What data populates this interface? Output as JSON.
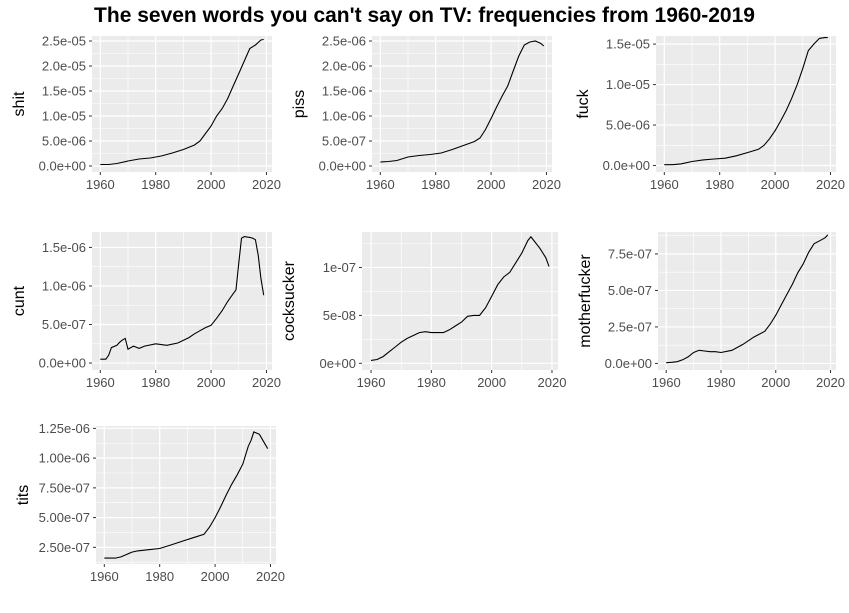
{
  "title": "The seven words you can't say on TV: frequencies from 1960-2019",
  "chart_data": [
    {
      "type": "line",
      "ylabel": "shit",
      "xlim": [
        1957,
        2022
      ],
      "ylim": [
        -1.2e-06,
        2.6e-05
      ],
      "xticks": [
        {
          "v": 1960,
          "label": "1960"
        },
        {
          "v": 1980,
          "label": "1980"
        },
        {
          "v": 2000,
          "label": "2000"
        },
        {
          "v": 2020,
          "label": "2020"
        }
      ],
      "yticks": [
        {
          "v": 0,
          "label": "0.0e+00"
        },
        {
          "v": 5e-06,
          "label": "5.0e-06"
        },
        {
          "v": 1e-05,
          "label": "1.0e-05"
        },
        {
          "v": 1.5e-05,
          "label": "1.5e-05"
        },
        {
          "v": 2e-05,
          "label": "2.0e-05"
        },
        {
          "v": 2.5e-05,
          "label": "2.5e-05"
        }
      ],
      "x": [
        1960,
        1963,
        1966,
        1970,
        1974,
        1978,
        1982,
        1986,
        1990,
        1994,
        1996,
        1998,
        2000,
        2002,
        2004,
        2006,
        2008,
        2010,
        2012,
        2014,
        2016,
        2018,
        2019
      ],
      "y": [
        3e-07,
        3e-07,
        5e-07,
        1e-06,
        1.4e-06,
        1.6e-06,
        2e-06,
        2.6e-06,
        3.3e-06,
        4.2e-06,
        5e-06,
        6.5e-06,
        8e-06,
        1e-05,
        1.15e-05,
        1.35e-05,
        1.6e-05,
        1.85e-05,
        2.1e-05,
        2.35e-05,
        2.42e-05,
        2.52e-05,
        2.53e-05
      ]
    },
    {
      "type": "line",
      "ylabel": "piss",
      "xlim": [
        1957,
        2022
      ],
      "ylim": [
        -1.2e-07,
        2.6e-06
      ],
      "xticks": [
        {
          "v": 1960,
          "label": "1960"
        },
        {
          "v": 1980,
          "label": "1980"
        },
        {
          "v": 2000,
          "label": "2000"
        },
        {
          "v": 2020,
          "label": "2020"
        }
      ],
      "yticks": [
        {
          "v": 0,
          "label": "0.0e+00"
        },
        {
          "v": 5e-07,
          "label": "5.0e-07"
        },
        {
          "v": 1e-06,
          "label": "1.0e-06"
        },
        {
          "v": 1.5e-06,
          "label": "1.5e-06"
        },
        {
          "v": 2e-06,
          "label": "2.0e-06"
        },
        {
          "v": 2.5e-06,
          "label": "2.5e-06"
        }
      ],
      "x": [
        1960,
        1963,
        1966,
        1970,
        1974,
        1978,
        1982,
        1986,
        1990,
        1994,
        1996,
        1998,
        2000,
        2002,
        2004,
        2006,
        2008,
        2010,
        2012,
        2014,
        2016,
        2018,
        2019
      ],
      "y": [
        8e-08,
        9e-08,
        1.1e-07,
        1.8e-07,
        2.1e-07,
        2.3e-07,
        2.6e-07,
        3.3e-07,
        4.1e-07,
        4.9e-07,
        5.6e-07,
        7.3e-07,
        9.5e-07,
        1.18e-06,
        1.4e-06,
        1.6e-06,
        1.9e-06,
        2.2e-06,
        2.42e-06,
        2.48e-06,
        2.5e-06,
        2.45e-06,
        2.4e-06
      ]
    },
    {
      "type": "line",
      "ylabel": "fuck",
      "xlim": [
        1957,
        2022
      ],
      "ylim": [
        -8e-07,
        1.6e-05
      ],
      "xticks": [
        {
          "v": 1960,
          "label": "1960"
        },
        {
          "v": 1980,
          "label": "1980"
        },
        {
          "v": 2000,
          "label": "2000"
        },
        {
          "v": 2020,
          "label": "2020"
        }
      ],
      "yticks": [
        {
          "v": 0,
          "label": "0.0e+00"
        },
        {
          "v": 5e-06,
          "label": "5.0e-06"
        },
        {
          "v": 1e-05,
          "label": "1.0e-05"
        },
        {
          "v": 1.5e-05,
          "label": "1.5e-05"
        }
      ],
      "x": [
        1960,
        1963,
        1966,
        1970,
        1974,
        1978,
        1982,
        1986,
        1990,
        1994,
        1996,
        1998,
        2000,
        2002,
        2004,
        2006,
        2008,
        2010,
        2012,
        2014,
        2016,
        2018,
        2019
      ],
      "y": [
        1e-07,
        1e-07,
        2e-07,
        5e-07,
        7e-07,
        8e-07,
        9e-07,
        1.2e-06,
        1.6e-06,
        2e-06,
        2.5e-06,
        3.3e-06,
        4.3e-06,
        5.5e-06,
        6.8e-06,
        8.3e-06,
        1e-05,
        1.2e-05,
        1.42e-05,
        1.5e-05,
        1.57e-05,
        1.58e-05,
        1.58e-05
      ]
    },
    {
      "type": "line",
      "ylabel": "cunt",
      "xlim": [
        1957,
        2022
      ],
      "ylim": [
        -9e-08,
        1.7e-06
      ],
      "xticks": [
        {
          "v": 1960,
          "label": "1960"
        },
        {
          "v": 1980,
          "label": "1980"
        },
        {
          "v": 2000,
          "label": "2000"
        },
        {
          "v": 2020,
          "label": "2020"
        }
      ],
      "yticks": [
        {
          "v": 0,
          "label": "0.0e+00"
        },
        {
          "v": 5e-07,
          "label": "5.0e-07"
        },
        {
          "v": 1e-06,
          "label": "1.0e-06"
        },
        {
          "v": 1.5e-06,
          "label": "1.5e-06"
        }
      ],
      "x": [
        1960,
        1962,
        1963,
        1964,
        1966,
        1967,
        1968,
        1969,
        1970,
        1972,
        1974,
        1976,
        1980,
        1984,
        1988,
        1992,
        1994,
        1996,
        1998,
        2000,
        2002,
        2004,
        2006,
        2008,
        2009,
        2010,
        2011,
        2012,
        2014,
        2015,
        2016,
        2017,
        2018,
        2019
      ],
      "y": [
        5e-08,
        5e-08,
        1e-07,
        2e-07,
        2.3e-07,
        2.7e-07,
        3e-07,
        3.2e-07,
        1.8e-07,
        2.2e-07,
        1.9e-07,
        2.2e-07,
        2.5e-07,
        2.3e-07,
        2.6e-07,
        3.3e-07,
        3.8e-07,
        4.2e-07,
        4.6e-07,
        4.9e-07,
        5.8e-07,
        6.8e-07,
        8e-07,
        9e-07,
        9.5e-07,
        1.3e-06,
        1.62e-06,
        1.64e-06,
        1.63e-06,
        1.62e-06,
        1.6e-06,
        1.4e-06,
        1.1e-06,
        8.8e-07
      ]
    },
    {
      "type": "line",
      "ylabel": "cocksucker",
      "xlim": [
        1957,
        2022
      ],
      "ylim": [
        -7e-09,
        1.37e-07
      ],
      "xticks": [
        {
          "v": 1960,
          "label": "1960"
        },
        {
          "v": 1980,
          "label": "1980"
        },
        {
          "v": 2000,
          "label": "2000"
        },
        {
          "v": 2020,
          "label": "2020"
        }
      ],
      "yticks": [
        {
          "v": 0,
          "label": "0e+00"
        },
        {
          "v": 5e-08,
          "label": "5e-08"
        },
        {
          "v": 1e-07,
          "label": "1e-07"
        }
      ],
      "x": [
        1960,
        1962,
        1964,
        1966,
        1968,
        1970,
        1972,
        1974,
        1976,
        1978,
        1980,
        1984,
        1986,
        1988,
        1990,
        1992,
        1994,
        1996,
        1998,
        2000,
        2002,
        2004,
        2006,
        2008,
        2010,
        2012,
        2013,
        2014,
        2016,
        2018,
        2019
      ],
      "y": [
        3e-09,
        4e-09,
        7e-09,
        1.2e-08,
        1.7e-08,
        2.2e-08,
        2.6e-08,
        2.9e-08,
        3.2e-08,
        3.3e-08,
        3.2e-08,
        3.2e-08,
        3.5e-08,
        3.9e-08,
        4.3e-08,
        4.9e-08,
        5e-08,
        5e-08,
        5.8e-08,
        7e-08,
        8.2e-08,
        9e-08,
        9.5e-08,
        1.05e-07,
        1.15e-07,
        1.28e-07,
        1.32e-07,
        1.28e-07,
        1.2e-07,
        1.1e-07,
        1.01e-07
      ]
    },
    {
      "type": "line",
      "ylabel": "motherfucker",
      "xlim": [
        1957,
        2022
      ],
      "ylim": [
        -4.5e-08,
        9e-07
      ],
      "xticks": [
        {
          "v": 1960,
          "label": "1960"
        },
        {
          "v": 1980,
          "label": "1980"
        },
        {
          "v": 2000,
          "label": "2000"
        },
        {
          "v": 2020,
          "label": "2020"
        }
      ],
      "yticks": [
        {
          "v": 0,
          "label": "0.0e+00"
        },
        {
          "v": 2.5e-07,
          "label": "2.5e-07"
        },
        {
          "v": 5e-07,
          "label": "5.0e-07"
        },
        {
          "v": 7.5e-07,
          "label": "7.5e-07"
        }
      ],
      "x": [
        1960,
        1962,
        1964,
        1966,
        1968,
        1970,
        1972,
        1974,
        1976,
        1978,
        1980,
        1984,
        1988,
        1992,
        1996,
        1998,
        2000,
        2002,
        2004,
        2006,
        2008,
        2010,
        2012,
        2014,
        2016,
        2018,
        2019
      ],
      "y": [
        5e-09,
        8e-09,
        1.2e-08,
        2.5e-08,
        4.5e-08,
        7.5e-08,
        9e-08,
        8.5e-08,
        8e-08,
        8e-08,
        7.5e-08,
        9e-08,
        1.3e-07,
        1.8e-07,
        2.2e-07,
        2.7e-07,
        3.3e-07,
        4e-07,
        4.7e-07,
        5.4e-07,
        6.2e-07,
        6.8e-07,
        7.6e-07,
        8.2e-07,
        8.4e-07,
        8.6e-07,
        8.8e-07
      ]
    },
    {
      "type": "line",
      "ylabel": "tits",
      "xlim": [
        1957,
        2022
      ],
      "ylim": [
        1.1e-07,
        1.27e-06
      ],
      "xticks": [
        {
          "v": 1960,
          "label": "1960"
        },
        {
          "v": 1980,
          "label": "1980"
        },
        {
          "v": 2000,
          "label": "2000"
        },
        {
          "v": 2020,
          "label": "2020"
        }
      ],
      "yticks": [
        {
          "v": 2.5e-07,
          "label": "2.50e-07"
        },
        {
          "v": 5e-07,
          "label": "5.00e-07"
        },
        {
          "v": 7.5e-07,
          "label": "7.50e-07"
        },
        {
          "v": 1e-06,
          "label": "1.00e-06"
        },
        {
          "v": 1.25e-06,
          "label": "1.25e-06"
        }
      ],
      "x": [
        1960,
        1962,
        1964,
        1966,
        1968,
        1970,
        1972,
        1976,
        1980,
        1984,
        1988,
        1992,
        1996,
        1998,
        2000,
        2002,
        2004,
        2006,
        2008,
        2010,
        2012,
        2013,
        2014,
        2016,
        2018,
        2019
      ],
      "y": [
        1.6e-07,
        1.6e-07,
        1.6e-07,
        1.7e-07,
        1.9e-07,
        2.1e-07,
        2.2e-07,
        2.3e-07,
        2.4e-07,
        2.7e-07,
        3e-07,
        3.3e-07,
        3.6e-07,
        4.2e-07,
        5e-07,
        5.9e-07,
        6.9e-07,
        7.8e-07,
        8.6e-07,
        9.5e-07,
        1.1e-06,
        1.15e-06,
        1.22e-06,
        1.2e-06,
        1.12e-06,
        1.08e-06
      ]
    }
  ]
}
